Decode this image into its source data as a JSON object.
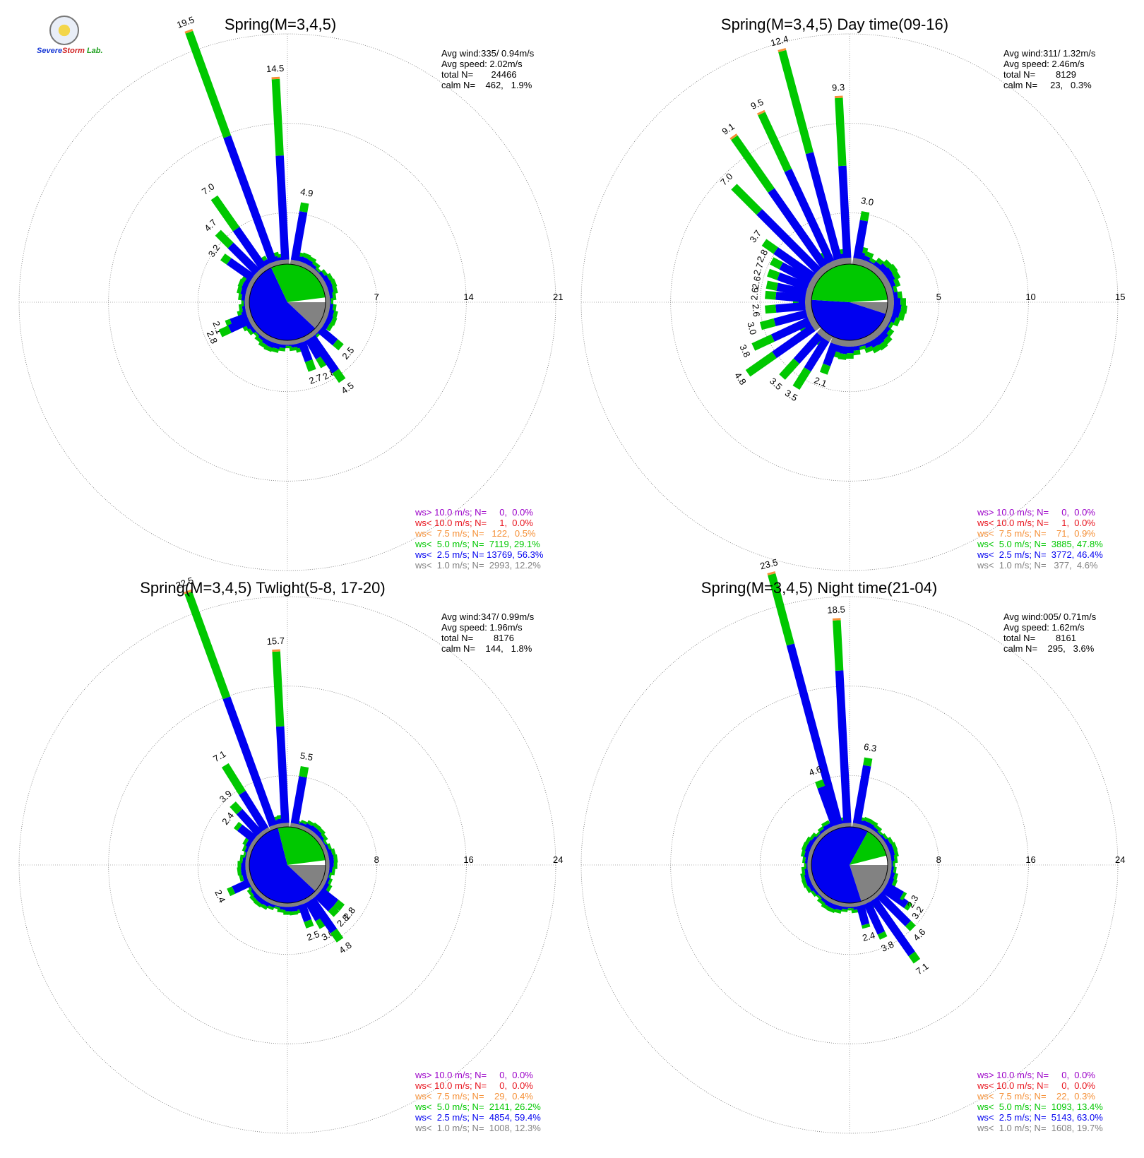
{
  "logo": {
    "text_a": "Severe",
    "text_b": "Storm",
    "text_c": "Lab."
  },
  "colors": {
    "ws_gt_10": "#9b00c8",
    "ws_lt_10": "#e8141e",
    "ws_lt_7_5": "#f59037",
    "ws_lt_5": "#00c800",
    "ws_lt_2_5": "#0000f0",
    "ws_lt_1": "#828282"
  },
  "chart_data": [
    {
      "type": "wind-rose",
      "title": "Spring(M=3,4,5)",
      "stats": {
        "avg_wind": "Avg wind:335/ 0.94m/s",
        "avg_speed": "Avg speed: 2.02m/s",
        "total_n": "total N=       24466",
        "calm_n": "calm N=    462,   1.9%"
      },
      "ring_values": [
        7,
        14,
        21
      ],
      "ring_labels": [
        "7",
        "14",
        "21"
      ],
      "rmax": 21,
      "inner_pie_fractions": {
        "ws_lt_2_5": 0.56,
        "ws_lt_5": 0.3,
        "ws_lt_1": 0.12,
        "calm": 0.02
      },
      "labeled_bars": [
        {
          "dir": 340,
          "total": 19.5,
          "blue": 10.8,
          "label": "19.5"
        },
        {
          "dir": 357,
          "total": 14.5,
          "blue": 8.5,
          "label": "14.5"
        },
        {
          "dir": 325,
          "total": 7.0,
          "blue": 4.0,
          "label": "7.0"
        },
        {
          "dir": 315,
          "total": 4.7,
          "blue": 3.3,
          "label": "4.7"
        },
        {
          "dir": 305,
          "total": 3.2,
          "blue": 2.6,
          "label": "3.2"
        },
        {
          "dir": 10,
          "total": 4.9,
          "blue": 4.2,
          "label": "4.9"
        },
        {
          "dir": 250,
          "total": 2.1,
          "blue": 1.7,
          "label": "2.1"
        },
        {
          "dir": 245,
          "total": 2.8,
          "blue": 2.0,
          "label": "2.8"
        },
        {
          "dir": 160,
          "total": 2.7,
          "blue": 1.9,
          "label": "2.7"
        },
        {
          "dir": 150,
          "total": 2.8,
          "blue": 2.0,
          "label": "2.8"
        },
        {
          "dir": 145,
          "total": 4.5,
          "blue": 3.6,
          "label": "4.5"
        },
        {
          "dir": 130,
          "total": 2.5,
          "blue": 1.9,
          "label": "2.5"
        }
      ],
      "legend": [
        {
          "text": "ws> 10.0 m/s; N=     0,  0.0%",
          "color": "#9b00c8"
        },
        {
          "text": "ws< 10.0 m/s; N=     1,  0.0%",
          "color": "#e8141e"
        },
        {
          "text": "ws<  7.5 m/s; N=   122,  0.5%",
          "color": "#f59037"
        },
        {
          "text": "ws<  5.0 m/s; N=  7119, 29.1%",
          "color": "#00c800"
        },
        {
          "text": "ws<  2.5 m/s; N= 13769, 56.3%",
          "color": "#0000f0"
        },
        {
          "text": "ws<  1.0 m/s; N=  2993, 12.2%",
          "color": "#828282"
        }
      ]
    },
    {
      "type": "wind-rose",
      "title": "Spring(M=3,4,5) Day time(09-16)",
      "stats": {
        "avg_wind": "Avg wind:311/ 1.32m/s",
        "avg_speed": "Avg speed: 2.46m/s",
        "total_n": "total N=        8129",
        "calm_n": "calm N=     23,   0.3%"
      },
      "ring_values": [
        5,
        10,
        15
      ],
      "ring_labels": [
        "5",
        "10",
        "15"
      ],
      "rmax": 15,
      "inner_pie_fractions": {
        "ws_lt_2_5": 0.46,
        "ws_lt_5": 0.48,
        "ws_lt_1": 0.05,
        "calm": 0.01
      },
      "labeled_bars": [
        {
          "dir": 345,
          "total": 12.4,
          "blue": 6.5,
          "label": "12.4"
        },
        {
          "dir": 357,
          "total": 9.3,
          "blue": 5.5,
          "label": "9.3"
        },
        {
          "dir": 335,
          "total": 9.5,
          "blue": 6.0,
          "label": "9.5"
        },
        {
          "dir": 325,
          "total": 9.1,
          "blue": 5.5,
          "label": "9.1"
        },
        {
          "dir": 315,
          "total": 7.0,
          "blue": 5.0,
          "label": "7.0"
        },
        {
          "dir": 10,
          "total": 3.0,
          "blue": 2.5,
          "label": "3.0"
        },
        {
          "dir": 305,
          "total": 3.7,
          "blue": 2.9,
          "label": "3.7"
        },
        {
          "dir": 298,
          "total": 2.8,
          "blue": 2.2,
          "label": "2.8"
        },
        {
          "dir": 290,
          "total": 2.7,
          "blue": 2.1,
          "label": "2.7"
        },
        {
          "dir": 282,
          "total": 2.6,
          "blue": 2.0,
          "label": "2.6"
        },
        {
          "dir": 275,
          "total": 2.6,
          "blue": 2.0,
          "label": "2.6"
        },
        {
          "dir": 265,
          "total": 2.6,
          "blue": 2.0,
          "label": "2.6"
        },
        {
          "dir": 255,
          "total": 3.0,
          "blue": 2.2,
          "label": "3.0"
        },
        {
          "dir": 245,
          "total": 3.8,
          "blue": 2.6,
          "label": "3.8"
        },
        {
          "dir": 235,
          "total": 4.8,
          "blue": 3.0,
          "label": "4.8"
        },
        {
          "dir": 222,
          "total": 3.5,
          "blue": 2.3,
          "label": "3.5"
        },
        {
          "dir": 212,
          "total": 3.5,
          "blue": 2.3,
          "label": "3.5"
        },
        {
          "dir": 200,
          "total": 2.1,
          "blue": 1.6,
          "label": "2.1"
        }
      ],
      "legend": [
        {
          "text": "ws> 10.0 m/s; N=     0,  0.0%",
          "color": "#9b00c8"
        },
        {
          "text": "ws< 10.0 m/s; N=     1,  0.0%",
          "color": "#e8141e"
        },
        {
          "text": "ws<  7.5 m/s; N=    71,  0.9%",
          "color": "#f59037"
        },
        {
          "text": "ws<  5.0 m/s; N=  3885, 47.8%",
          "color": "#00c800"
        },
        {
          "text": "ws<  2.5 m/s; N=  3772, 46.4%",
          "color": "#0000f0"
        },
        {
          "text": "ws<  1.0 m/s; N=   377,  4.6%",
          "color": "#828282"
        }
      ]
    },
    {
      "type": "wind-rose",
      "title": "Spring(M=3,4,5) Twlight(5-8, 17-20)",
      "stats": {
        "avg_wind": "Avg wind:347/ 0.99m/s",
        "avg_speed": "Avg speed: 1.96m/s",
        "total_n": "total N=        8176",
        "calm_n": "calm N=    144,   1.8%"
      },
      "ring_values": [
        8,
        16,
        24
      ],
      "ring_labels": [
        "8",
        "16",
        "24"
      ],
      "rmax": 24,
      "inner_pie_fractions": {
        "ws_lt_2_5": 0.59,
        "ws_lt_5": 0.27,
        "ws_lt_1": 0.12,
        "calm": 0.02
      },
      "labeled_bars": [
        {
          "dir": 340,
          "total": 22.5,
          "blue": 12.5,
          "label": "22.5"
        },
        {
          "dir": 357,
          "total": 15.7,
          "blue": 9.0,
          "label": "15.7"
        },
        {
          "dir": 328,
          "total": 7.1,
          "blue": 4.2,
          "label": "7.1"
        },
        {
          "dir": 318,
          "total": 3.9,
          "blue": 3.0,
          "label": "3.9"
        },
        {
          "dir": 308,
          "total": 2.4,
          "blue": 2.0,
          "label": "2.4"
        },
        {
          "dir": 10,
          "total": 5.5,
          "blue": 4.6,
          "label": "5.5"
        },
        {
          "dir": 245,
          "total": 2.4,
          "blue": 1.9,
          "label": "2.4"
        },
        {
          "dir": 160,
          "total": 2.5,
          "blue": 1.9,
          "label": "2.5"
        },
        {
          "dir": 150,
          "total": 3.0,
          "blue": 2.2,
          "label": "3.0"
        },
        {
          "dir": 145,
          "total": 4.8,
          "blue": 3.8,
          "label": "4.8"
        },
        {
          "dir": 135,
          "total": 2.8,
          "blue": 2.1,
          "label": "2.8"
        },
        {
          "dir": 128,
          "total": 2.8,
          "blue": 2.1,
          "label": "2.8"
        }
      ],
      "legend": [
        {
          "text": "ws> 10.0 m/s; N=     0,  0.0%",
          "color": "#9b00c8"
        },
        {
          "text": "ws< 10.0 m/s; N=     0,  0.0%",
          "color": "#e8141e"
        },
        {
          "text": "ws<  7.5 m/s; N=    29,  0.4%",
          "color": "#f59037"
        },
        {
          "text": "ws<  5.0 m/s; N=  2141, 26.2%",
          "color": "#00c800"
        },
        {
          "text": "ws<  2.5 m/s; N=  4854, 59.4%",
          "color": "#0000f0"
        },
        {
          "text": "ws<  1.0 m/s; N=  1008, 12.3%",
          "color": "#828282"
        }
      ]
    },
    {
      "type": "wind-rose",
      "title": "Spring(M=3,4,5) Night time(21-04)",
      "stats": {
        "avg_wind": "Avg wind:005/ 0.71m/s",
        "avg_speed": "Avg speed: 1.62m/s",
        "total_n": "total N=        8161",
        "calm_n": "calm N=    295,   3.6%"
      },
      "ring_values": [
        8,
        16,
        24
      ],
      "ring_labels": [
        "8",
        "16",
        "24"
      ],
      "rmax": 24,
      "inner_pie_fractions": {
        "ws_lt_2_5": 0.63,
        "ws_lt_5": 0.13,
        "ws_lt_1": 0.2,
        "calm": 0.04
      },
      "labeled_bars": [
        {
          "dir": 345,
          "total": 23.5,
          "blue": 17.0,
          "label": "23.5"
        },
        {
          "dir": 357,
          "total": 18.5,
          "blue": 14.0,
          "label": "18.5"
        },
        {
          "dir": 340,
          "total": 4.6,
          "blue": 4.0,
          "label": "4.6"
        },
        {
          "dir": 10,
          "total": 6.3,
          "blue": 5.6,
          "label": "6.3"
        },
        {
          "dir": 145,
          "total": 7.1,
          "blue": 6.3,
          "label": "7.1"
        },
        {
          "dir": 135,
          "total": 4.6,
          "blue": 4.0,
          "label": "4.6"
        },
        {
          "dir": 125,
          "total": 3.2,
          "blue": 2.8,
          "label": "3.2"
        },
        {
          "dir": 120,
          "total": 2.3,
          "blue": 2.0,
          "label": "2.3"
        },
        {
          "dir": 155,
          "total": 3.8,
          "blue": 3.3,
          "label": "3.8"
        },
        {
          "dir": 165,
          "total": 2.4,
          "blue": 2.1,
          "label": "2.4"
        }
      ],
      "legend": [
        {
          "text": "ws> 10.0 m/s; N=     0,  0.0%",
          "color": "#9b00c8"
        },
        {
          "text": "ws< 10.0 m/s; N=     0,  0.0%",
          "color": "#e8141e"
        },
        {
          "text": "ws<  7.5 m/s; N=    22,  0.3%",
          "color": "#f59037"
        },
        {
          "text": "ws<  5.0 m/s; N=  1093, 13.4%",
          "color": "#00c800"
        },
        {
          "text": "ws<  2.5 m/s; N=  5143, 63.0%",
          "color": "#0000f0"
        },
        {
          "text": "ws<  1.0 m/s; N=  1608, 19.7%",
          "color": "#828282"
        }
      ]
    }
  ]
}
